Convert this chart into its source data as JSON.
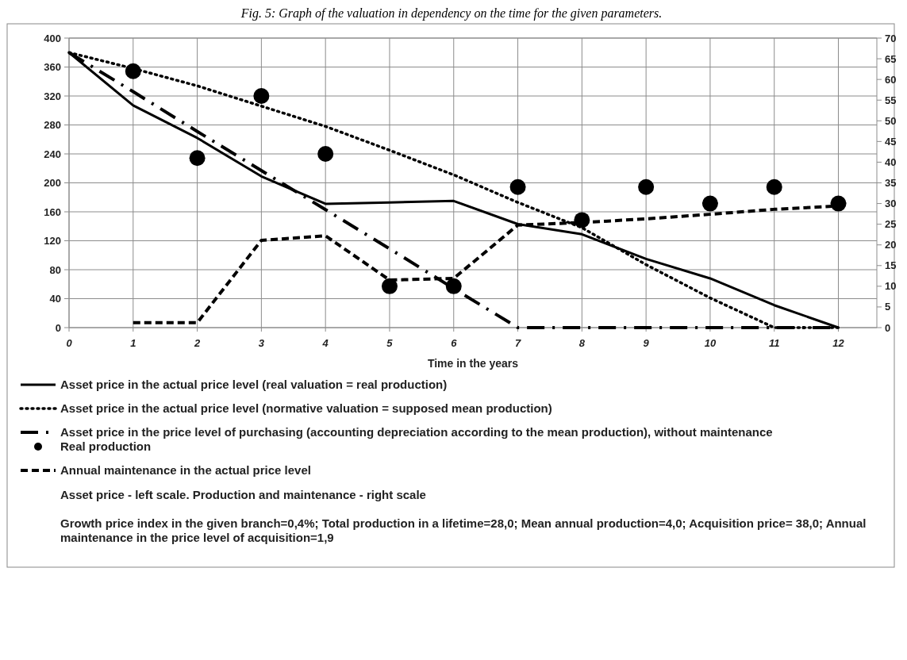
{
  "chart_data": {
    "type": "line",
    "title": "Fig. 5: Graph of the valuation in dependency on the time for the given parameters.",
    "xlabel": "Time in the years",
    "x": [
      0,
      1,
      2,
      3,
      4,
      5,
      6,
      7,
      8,
      9,
      10,
      11,
      12
    ],
    "xlim": [
      0,
      12.6
    ],
    "xticks": [
      0,
      1,
      2,
      3,
      4,
      5,
      6,
      7,
      8,
      9,
      10,
      11,
      12
    ],
    "ylim": [
      0,
      400
    ],
    "yticks": [
      0,
      40,
      80,
      120,
      160,
      200,
      240,
      280,
      320,
      360,
      400
    ],
    "y2lim": [
      0,
      70
    ],
    "y2ticks": [
      0,
      5,
      10,
      15,
      20,
      25,
      30,
      35,
      40,
      45,
      50,
      55,
      60,
      65,
      70
    ],
    "grid": true,
    "legend": "bottom",
    "series": [
      {
        "name": "Asset price in the actual price level (real valuation = real production)",
        "line_style": "solid",
        "marker": "none",
        "color": "#000000",
        "values": [
          380,
          307,
          262,
          209,
          171,
          173,
          175,
          143,
          129,
          95,
          68,
          31,
          0
        ]
      },
      {
        "name": "Asset price in the actual price level (normative valuation = supposed mean production)",
        "line_style": "dotted",
        "marker": "none",
        "color": "#000000",
        "values": [
          380,
          358,
          334,
          306,
          278,
          245,
          211,
          173,
          138,
          87,
          41,
          0,
          0
        ]
      },
      {
        "name": "Asset price in the price level of purchasing (accounting depreciation according to the mean production), without maintenance",
        "line_style": "dashdot",
        "marker": "none",
        "color": "#000000",
        "values": [
          380,
          326,
          271,
          217,
          163,
          109,
          54,
          0,
          0,
          0,
          0,
          0,
          0
        ]
      },
      {
        "name": "Real production",
        "type": "scatter",
        "axis": "y2",
        "marker": "circle",
        "color": "#000000",
        "x": [
          1,
          2,
          3,
          4,
          5,
          6,
          7,
          8,
          9,
          10,
          11,
          12
        ],
        "values": [
          62,
          41,
          56,
          42,
          10,
          10,
          34,
          26,
          34,
          30,
          34,
          30
        ]
      },
      {
        "name": "Annual maintenance in the actual price level",
        "axis": "y2",
        "line_style": "dashed",
        "marker": "none",
        "color": "#000000",
        "x": [
          1,
          2,
          3,
          4,
          5,
          6,
          7,
          8,
          9,
          10,
          11,
          12
        ],
        "values": [
          1.2,
          1.2,
          21.1,
          22.2,
          11.5,
          11.9,
          24.8,
          25.4,
          26.3,
          27.4,
          28.6,
          29.4
        ]
      }
    ],
    "annotations": [
      "Asset price - left scale. Production and maintenance - right scale",
      "Growth price index in the given branch=0,4%; Total production in a lifetime=28,0; Mean annual production=4,0; Acquisition price= 38,0; Annual maintenance in the price level of acquisition=1,9"
    ]
  }
}
